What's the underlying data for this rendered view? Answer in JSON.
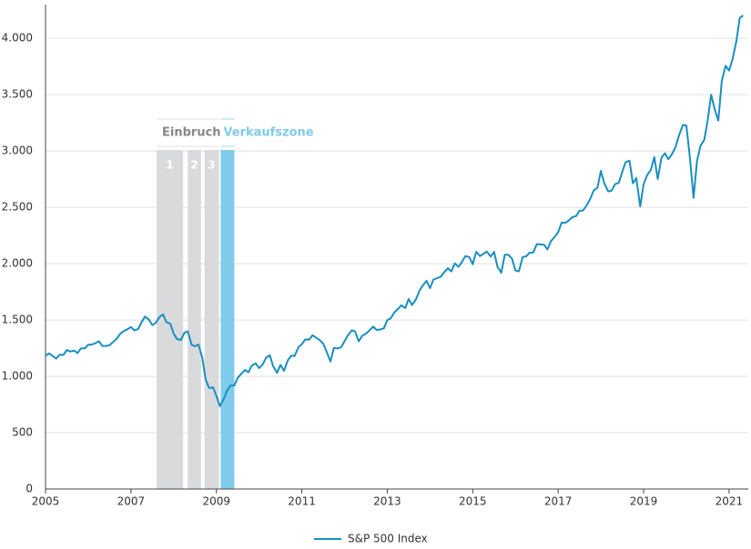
{
  "chart_data": {
    "type": "line",
    "x": [
      2005.0,
      2005.08,
      2005.17,
      2005.25,
      2005.33,
      2005.42,
      2005.5,
      2005.58,
      2005.67,
      2005.75,
      2005.83,
      2005.92,
      2006.0,
      2006.08,
      2006.17,
      2006.25,
      2006.33,
      2006.42,
      2006.5,
      2006.58,
      2006.67,
      2006.75,
      2006.83,
      2006.92,
      2007.0,
      2007.08,
      2007.17,
      2007.25,
      2007.33,
      2007.42,
      2007.5,
      2007.58,
      2007.67,
      2007.75,
      2007.83,
      2007.92,
      2008.0,
      2008.08,
      2008.17,
      2008.25,
      2008.33,
      2008.42,
      2008.5,
      2008.58,
      2008.67,
      2008.75,
      2008.83,
      2008.92,
      2009.0,
      2009.08,
      2009.17,
      2009.25,
      2009.33,
      2009.42,
      2009.5,
      2009.58,
      2009.67,
      2009.75,
      2009.83,
      2009.92,
      2010.0,
      2010.08,
      2010.17,
      2010.25,
      2010.33,
      2010.42,
      2010.5,
      2010.58,
      2010.67,
      2010.75,
      2010.83,
      2010.92,
      2011.0,
      2011.08,
      2011.17,
      2011.25,
      2011.33,
      2011.42,
      2011.5,
      2011.58,
      2011.67,
      2011.75,
      2011.83,
      2011.92,
      2012.0,
      2012.08,
      2012.17,
      2012.25,
      2012.33,
      2012.42,
      2012.5,
      2012.58,
      2012.67,
      2012.75,
      2012.83,
      2012.92,
      2013.0,
      2013.08,
      2013.17,
      2013.25,
      2013.33,
      2013.42,
      2013.5,
      2013.58,
      2013.67,
      2013.75,
      2013.83,
      2013.92,
      2014.0,
      2014.08,
      2014.17,
      2014.25,
      2014.33,
      2014.42,
      2014.5,
      2014.58,
      2014.67,
      2014.75,
      2014.83,
      2014.92,
      2015.0,
      2015.08,
      2015.17,
      2015.25,
      2015.33,
      2015.42,
      2015.5,
      2015.58,
      2015.67,
      2015.75,
      2015.83,
      2015.92,
      2016.0,
      2016.08,
      2016.17,
      2016.25,
      2016.33,
      2016.42,
      2016.5,
      2016.58,
      2016.67,
      2016.75,
      2016.83,
      2016.92,
      2017.0,
      2017.08,
      2017.17,
      2017.25,
      2017.33,
      2017.42,
      2017.5,
      2017.58,
      2017.67,
      2017.75,
      2017.83,
      2017.92,
      2018.0,
      2018.08,
      2018.17,
      2018.25,
      2018.33,
      2018.42,
      2018.5,
      2018.58,
      2018.67,
      2018.75,
      2018.83,
      2018.92,
      2019.0,
      2019.08,
      2019.17,
      2019.25,
      2019.33,
      2019.42,
      2019.5,
      2019.58,
      2019.67,
      2019.75,
      2019.83,
      2019.92,
      2020.0,
      2020.08,
      2020.17,
      2020.25,
      2020.33,
      2020.42,
      2020.5,
      2020.58,
      2020.67,
      2020.75,
      2020.83,
      2020.92,
      2021.0,
      2021.08,
      2021.17,
      2021.25,
      2021.33
    ],
    "series": [
      {
        "name": "S&P 500 Index",
        "color": "#1a8fc0",
        "values": [
          1181,
          1204,
          1180,
          1157,
          1192,
          1191,
          1234,
          1220,
          1229,
          1207,
          1249,
          1248,
          1280,
          1281,
          1295,
          1311,
          1270,
          1270,
          1277,
          1304,
          1336,
          1378,
          1401,
          1418,
          1438,
          1407,
          1421,
          1482,
          1531,
          1503,
          1455,
          1474,
          1527,
          1549,
          1481,
          1468,
          1379,
          1331,
          1323,
          1386,
          1400,
          1280,
          1267,
          1283,
          1166,
          969,
          896,
          903,
          826,
          735,
          798,
          873,
          919,
          919,
          987,
          1021,
          1057,
          1036,
          1096,
          1115,
          1074,
          1104,
          1169,
          1187,
          1089,
          1031,
          1102,
          1049,
          1141,
          1183,
          1181,
          1258,
          1286,
          1327,
          1326,
          1364,
          1345,
          1321,
          1292,
          1219,
          1131,
          1253,
          1247,
          1258,
          1312,
          1366,
          1408,
          1398,
          1310,
          1362,
          1379,
          1407,
          1441,
          1412,
          1416,
          1426,
          1498,
          1515,
          1569,
          1598,
          1631,
          1606,
          1686,
          1633,
          1682,
          1757,
          1806,
          1848,
          1783,
          1859,
          1872,
          1884,
          1924,
          1960,
          1931,
          2003,
          1972,
          2018,
          2068,
          2059,
          1995,
          2105,
          2068,
          2086,
          2107,
          2063,
          2104,
          1972,
          1920,
          2079,
          2080,
          2044,
          1940,
          1932,
          2060,
          2065,
          2097,
          2099,
          2174,
          2171,
          2168,
          2126,
          2199,
          2239,
          2279,
          2364,
          2363,
          2384,
          2412,
          2423,
          2470,
          2472,
          2519,
          2575,
          2648,
          2674,
          2824,
          2714,
          2641,
          2648,
          2705,
          2718,
          2816,
          2902,
          2914,
          2712,
          2760,
          2507,
          2704,
          2784,
          2834,
          2946,
          2752,
          2942,
          2980,
          2926,
          2977,
          3038,
          3141,
          3231,
          3226,
          2954,
          2585,
          2912,
          3044,
          3100,
          3271,
          3500,
          3363,
          3270,
          3622,
          3756,
          3714,
          3811,
          3973,
          4181,
          4204
        ]
      }
    ],
    "phases": [
      {
        "label": "1",
        "x": [
          2007.6,
          2008.22
        ],
        "color": "#d9dadc"
      },
      {
        "label": "2",
        "x": [
          2008.33,
          2008.64
        ],
        "color": "#d9dadc"
      },
      {
        "label": "3",
        "x": [
          2008.72,
          2009.06
        ],
        "color": "#d9dadc"
      },
      {
        "x": [
          2009.1,
          2009.42
        ],
        "color": "#7fcbeb"
      }
    ],
    "phase_groups": [
      {
        "label": "Einbruch",
        "color": "#888888"
      },
      {
        "label": "Verkaufszone",
        "color": "#7fcbeb"
      }
    ],
    "xlim": [
      2005,
      2021.45
    ],
    "xticks": [
      2005,
      2007,
      2009,
      2011,
      2013,
      2015,
      2017,
      2019,
      2021
    ],
    "ylim": [
      0,
      4300
    ],
    "yticks": [
      0,
      500,
      {
        "value": 1000,
        "label": "1.000"
      },
      {
        "value": 1500,
        "label": "1.500"
      },
      {
        "value": 2000,
        "label": "2.000"
      },
      {
        "value": 2500,
        "label": "2.500"
      },
      {
        "value": 3000,
        "label": "3.000"
      },
      {
        "value": 3500,
        "label": "3.500"
      },
      {
        "value": 4000,
        "label": "4.000"
      }
    ],
    "grid": true,
    "legend": "bottom"
  }
}
